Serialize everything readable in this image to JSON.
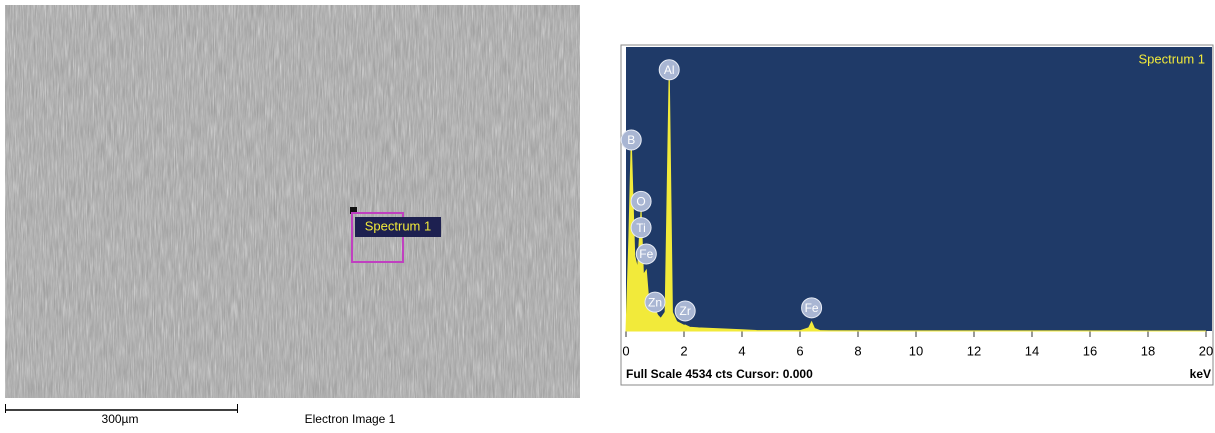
{
  "sem_image": {
    "label": "Spectrum 1",
    "scale_bar": "300µm",
    "caption": "Electron Image 1"
  },
  "chart_data": {
    "type": "area",
    "title": "Spectrum 1",
    "x": [
      0,
      0.1,
      0.18,
      0.3,
      0.4,
      0.52,
      0.6,
      0.7,
      0.8,
      0.9,
      1.0,
      1.1,
      1.2,
      1.35,
      1.49,
      1.6,
      1.75,
      2.0,
      2.04,
      2.2,
      2.5,
      3,
      4,
      4.5,
      5,
      6,
      6.3,
      6.4,
      6.5,
      6.7,
      7,
      10,
      15,
      20
    ],
    "values": [
      0,
      1500,
      3050,
      1200,
      1000,
      1930,
      900,
      970,
      400,
      300,
      335,
      250,
      200,
      300,
      4170,
      300,
      150,
      90,
      95,
      60,
      50,
      40,
      20,
      8,
      5,
      5,
      50,
      145,
      40,
      5,
      3,
      2,
      1,
      0
    ],
    "color": "#f2ea3a",
    "xlim": [
      0,
      20
    ],
    "xticks": [
      0,
      2,
      4,
      6,
      8,
      10,
      12,
      14,
      16,
      18,
      20
    ],
    "ylim": [
      0,
      4534
    ],
    "x_label": "keV",
    "footer": "Full Scale 4534 cts Cursor: 0.000",
    "peaks": [
      {
        "label": "Al",
        "x": 1.49,
        "counts": 4170
      },
      {
        "label": "B",
        "x": 0.18,
        "counts": 3050
      },
      {
        "label": "O",
        "x": 0.52,
        "counts": 2070
      },
      {
        "label": "Ti",
        "x": 0.52,
        "counts": 1650
      },
      {
        "label": "Fe",
        "x": 0.7,
        "counts": 1230
      },
      {
        "label": "Zn",
        "x": 1.0,
        "counts": 460
      },
      {
        "label": "Zr",
        "x": 2.04,
        "counts": 320
      },
      {
        "label": "Fe",
        "x": 6.4,
        "counts": 370
      }
    ]
  }
}
